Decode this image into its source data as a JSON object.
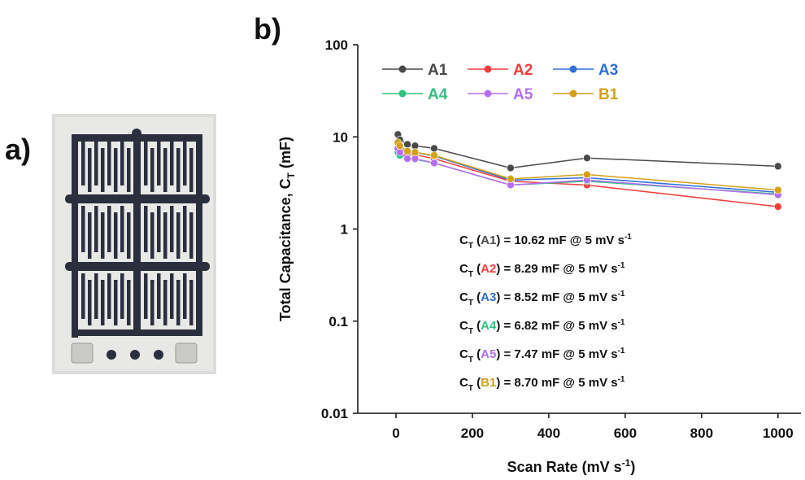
{
  "panel_labels": [
    "a)",
    "b)"
  ],
  "chart_data": {
    "type": "line",
    "x_label": {
      "text": "Scan Rate (mV s",
      "superscript": "-1",
      "after": ")"
    },
    "y_label": {
      "text": "Total Capacitance, C",
      "subscript": "T",
      "after": " (mF)"
    },
    "x": [
      5,
      10,
      30,
      50,
      100,
      300,
      500,
      1000
    ],
    "series": [
      {
        "name": "A1",
        "color": "#4a4a4a",
        "values": [
          10.62,
          9.3,
          8.3,
          8.0,
          7.5,
          4.6,
          5.9,
          4.8
        ]
      },
      {
        "name": "A2",
        "color": "#f03c3c",
        "values": [
          8.29,
          7.6,
          6.6,
          6.4,
          5.8,
          3.3,
          3.0,
          1.75
        ]
      },
      {
        "name": "A3",
        "color": "#2f6fd6",
        "values": [
          8.52,
          7.8,
          7.0,
          6.8,
          6.2,
          3.4,
          3.6,
          2.5
        ]
      },
      {
        "name": "A4",
        "color": "#2fbf7f",
        "values": [
          6.82,
          6.3,
          5.8,
          5.7,
          5.2,
          3.0,
          3.3,
          2.4
        ]
      },
      {
        "name": "A5",
        "color": "#b46ef2",
        "values": [
          7.47,
          6.8,
          5.8,
          5.8,
          5.2,
          3.0,
          3.4,
          2.35
        ]
      },
      {
        "name": "B1",
        "color": "#d4a016",
        "values": [
          8.7,
          8.0,
          7.0,
          6.8,
          6.3,
          3.5,
          3.9,
          2.65
        ]
      }
    ],
    "xlim": [
      -100,
      1060
    ],
    "xticks": [
      0,
      200,
      400,
      600,
      800,
      1000
    ],
    "ylim": [
      0.01,
      100
    ],
    "yticks": [
      0.01,
      0.1,
      1,
      10,
      100
    ],
    "log_y": true,
    "legend": "upper left",
    "annotations": [
      {
        "symbol": "C",
        "subscript": "T",
        "before": " (",
        "tag": "A1",
        "after": ") = 10.62 mF @ 5 mV s",
        "superscript": "-1"
      },
      {
        "symbol": "C",
        "subscript": "T",
        "before": " (",
        "tag": "A2",
        "after": ") = 8.29 mF @ 5 mV s",
        "superscript": "-1"
      },
      {
        "symbol": "C",
        "subscript": "T",
        "before": " (",
        "tag": "A3",
        "after": ") = 8.52 mF @ 5 mV s",
        "superscript": "-1"
      },
      {
        "symbol": "C",
        "subscript": "T",
        "before": " (",
        "tag": "A4",
        "after": ") = 6.82 mF @ 5 mV s",
        "superscript": "-1"
      },
      {
        "symbol": "C",
        "subscript": "T",
        "before": " (",
        "tag": "A5",
        "after": ") = 7.47 mF @ 5 mV s",
        "superscript": "-1"
      },
      {
        "symbol": "C",
        "subscript": "T",
        "before": " (",
        "tag": "B1",
        "after": ") = 8.70 mF @ 5 mV s",
        "superscript": "-1"
      }
    ]
  }
}
